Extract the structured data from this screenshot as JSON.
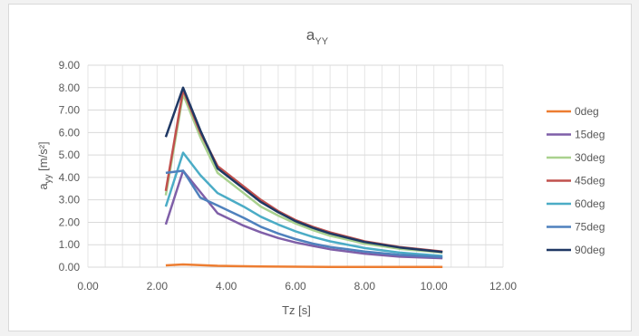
{
  "chart_data": {
    "type": "line",
    "title": "a",
    "title_subscript": "YY",
    "xlabel": "Tz [s]",
    "ylabel": "a",
    "ylabel_subscript": "yy",
    "ylabel_unit": " [m/s²]",
    "xlim": [
      0,
      12
    ],
    "ylim": [
      0,
      9
    ],
    "x_ticks": [
      "0.00",
      "2.00",
      "4.00",
      "6.00",
      "8.00",
      "10.00",
      "12.00"
    ],
    "y_ticks": [
      "0.00",
      "1.00",
      "2.00",
      "3.00",
      "4.00",
      "5.00",
      "6.00",
      "7.00",
      "8.00",
      "9.00"
    ],
    "grid": true,
    "legend_position": "right",
    "series": [
      {
        "name": "0deg",
        "color": "#ed7d31",
        "x": [
          2.25,
          2.75,
          3.75,
          5.0,
          6.0,
          7.0,
          8.0,
          9.0,
          10.25
        ],
        "y": [
          0.08,
          0.12,
          0.06,
          0.03,
          0.02,
          0.01,
          0.01,
          0.01,
          0.01
        ]
      },
      {
        "name": "15deg",
        "color": "#7f5fa8",
        "x": [
          2.25,
          2.75,
          3.75,
          4.5,
          5.0,
          5.5,
          6.0,
          6.5,
          7.0,
          8.0,
          9.0,
          10.25
        ],
        "y": [
          1.9,
          4.3,
          2.4,
          1.85,
          1.55,
          1.3,
          1.1,
          0.95,
          0.8,
          0.6,
          0.47,
          0.4
        ]
      },
      {
        "name": "30deg",
        "color": "#a9d18e",
        "x": [
          2.25,
          2.75,
          3.25,
          3.75,
          4.5,
          5.0,
          5.5,
          6.0,
          6.5,
          7.0,
          8.0,
          9.0,
          10.25
        ],
        "y": [
          3.2,
          7.7,
          5.8,
          4.2,
          3.3,
          2.7,
          2.3,
          1.95,
          1.65,
          1.4,
          1.05,
          0.82,
          0.65
        ]
      },
      {
        "name": "45deg",
        "color": "#c0504d",
        "x": [
          2.25,
          2.75,
          3.25,
          3.75,
          4.5,
          5.0,
          5.5,
          6.0,
          6.5,
          7.0,
          8.0,
          9.0,
          10.25
        ],
        "y": [
          3.4,
          7.9,
          6.0,
          4.5,
          3.6,
          3.0,
          2.5,
          2.1,
          1.8,
          1.55,
          1.15,
          0.9,
          0.7
        ]
      },
      {
        "name": "60deg",
        "color": "#4bacc6",
        "x": [
          2.25,
          2.75,
          3.25,
          3.75,
          4.5,
          5.0,
          5.5,
          6.0,
          6.5,
          7.0,
          8.0,
          9.0,
          10.25
        ],
        "y": [
          2.7,
          5.1,
          4.1,
          3.3,
          2.7,
          2.25,
          1.9,
          1.6,
          1.35,
          1.15,
          0.85,
          0.65,
          0.5
        ]
      },
      {
        "name": "75deg",
        "color": "#4f81bd",
        "x": [
          2.25,
          2.75,
          3.25,
          3.75,
          4.5,
          5.0,
          5.5,
          6.0,
          6.5,
          7.0,
          8.0,
          9.0,
          10.25
        ],
        "y": [
          4.2,
          4.3,
          3.1,
          2.75,
          2.2,
          1.8,
          1.5,
          1.25,
          1.05,
          0.9,
          0.7,
          0.55,
          0.45
        ]
      },
      {
        "name": "90deg",
        "color": "#1f3864",
        "x": [
          2.25,
          2.75,
          3.25,
          3.75,
          4.5,
          5.0,
          5.5,
          6.0,
          6.5,
          7.0,
          8.0,
          9.0,
          10.25
        ],
        "y": [
          5.8,
          8.0,
          6.1,
          4.4,
          3.5,
          2.9,
          2.45,
          2.05,
          1.75,
          1.5,
          1.12,
          0.88,
          0.68
        ]
      }
    ]
  }
}
